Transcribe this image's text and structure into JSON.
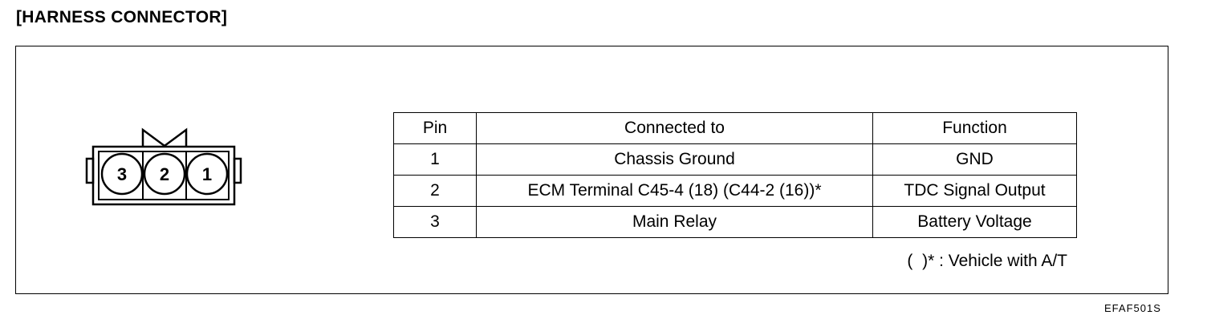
{
  "title": "[HARNESS CONNECTOR]",
  "connector": {
    "pins": [
      "3",
      "2",
      "1"
    ]
  },
  "table": {
    "headers": [
      "Pin",
      "Connected to",
      "Function"
    ],
    "rows": [
      [
        "1",
        "Chassis Ground",
        "GND"
      ],
      [
        "2",
        "ECM Terminal C45-4 (18) (C44-2 (16))*",
        "TDC Signal Output"
      ],
      [
        "3",
        "Main Relay",
        "Battery Voltage"
      ]
    ]
  },
  "footnote": "(  )* : Vehicle with A/T",
  "figure_code": "EFAF501S"
}
